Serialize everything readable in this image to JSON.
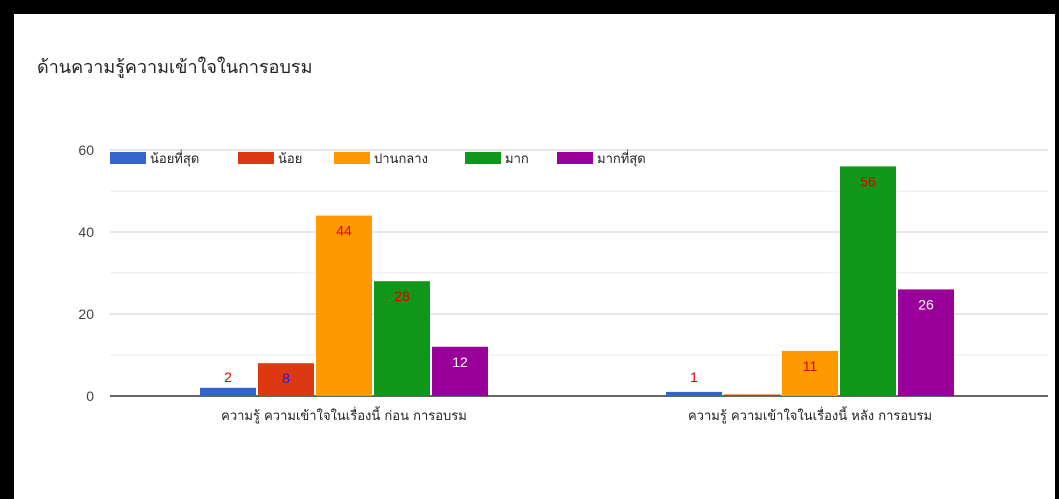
{
  "title": "ด้านความรู้ความเข้าใจในการอบรม",
  "chart_data": {
    "type": "bar",
    "title": "ด้านความรู้ความเข้าใจในการอบรม",
    "categories": [
      "ความรู้ ความเข้าใจในเรื่องนี้ ก่อน การอบรม",
      "ความรู้ ความเข้าใจในเรื่องนี้ หลัง การอบรม"
    ],
    "series": [
      {
        "name": "น้อยที่สุด",
        "color": "#3366cc",
        "values": [
          2,
          1
        ],
        "labels": [
          "2",
          "1"
        ],
        "label_colors": [
          "#e00000",
          "#e00000"
        ]
      },
      {
        "name": "น้อย",
        "color": "#dc3912",
        "values": [
          8,
          0
        ],
        "labels": [
          "8",
          ""
        ],
        "label_colors": [
          "#1a1aff",
          "#e00000"
        ]
      },
      {
        "name": "ปานกลาง",
        "color": "#ff9900",
        "values": [
          44,
          11
        ],
        "labels": [
          "44",
          "11"
        ],
        "label_colors": [
          "#e00000",
          "#e00000"
        ]
      },
      {
        "name": "มาก",
        "color": "#109618",
        "values": [
          28,
          56
        ],
        "labels": [
          "28",
          "56"
        ],
        "label_colors": [
          "#e00000",
          "#e00000"
        ]
      },
      {
        "name": "มากที่สุด",
        "color": "#990099",
        "values": [
          12,
          26
        ],
        "labels": [
          "12",
          "26"
        ],
        "label_colors": [
          "#ffffff",
          "#ffffff"
        ]
      }
    ],
    "yticks": [
      "0",
      "20",
      "40",
      "60"
    ],
    "ylim": [
      0,
      60
    ],
    "grid": true,
    "legend": "top"
  }
}
